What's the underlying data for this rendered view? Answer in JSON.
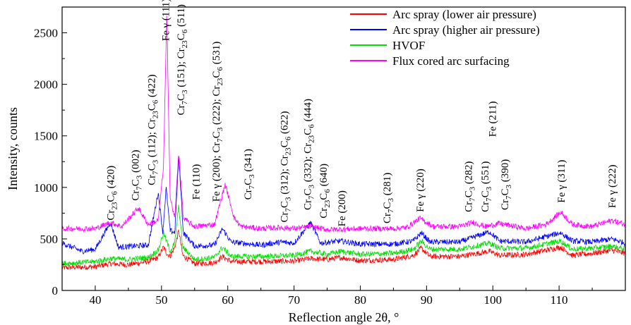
{
  "chart_data": {
    "type": "line",
    "xlabel": "Reflection angle 2θ, °",
    "ylabel": "Intensity, counts",
    "xlim": [
      35,
      120
    ],
    "ylim": [
      0,
      2750
    ],
    "xticks": [
      40,
      50,
      60,
      70,
      80,
      90,
      100,
      110
    ],
    "yticks": [
      0,
      500,
      1000,
      1500,
      2000,
      2500
    ],
    "grid": false,
    "legend_position": "top-right",
    "series": [
      {
        "name": "Arc spray (lower air pressure)",
        "color": "#ff0000",
        "x": [
          35,
          40,
          42.3,
          45,
          48,
          49.5,
          50.3,
          50.8,
          51.3,
          52,
          52.6,
          53.2,
          55,
          58,
          59.2,
          60.5,
          65,
          70,
          72.5,
          75,
          77,
          80,
          85,
          88,
          89.2,
          90.5,
          95,
          99.5,
          101,
          105,
          110.2,
          112,
          115,
          118,
          120
        ],
        "values": [
          220,
          230,
          260,
          250,
          280,
          320,
          420,
          360,
          330,
          420,
          580,
          340,
          260,
          270,
          330,
          280,
          280,
          285,
          310,
          300,
          320,
          290,
          300,
          340,
          410,
          330,
          330,
          380,
          340,
          350,
          420,
          340,
          360,
          390,
          360
        ]
      },
      {
        "name": "Arc spray (higher air pressure)",
        "color": "#0000ff",
        "x": [
          35,
          38,
          40,
          42.3,
          43.5,
          46,
          48,
          49.5,
          50.2,
          50.7,
          51.3,
          52,
          52.6,
          53.3,
          55,
          58,
          59.2,
          60.5,
          65,
          68,
          70,
          72.5,
          74,
          77,
          80,
          85,
          88,
          89.2,
          90.5,
          95,
          99.5,
          101,
          105,
          110.2,
          112,
          115,
          118,
          120
        ],
        "values": [
          460,
          380,
          400,
          660,
          420,
          430,
          440,
          950,
          560,
          1000,
          580,
          560,
          1300,
          560,
          430,
          440,
          600,
          470,
          440,
          470,
          460,
          660,
          460,
          480,
          450,
          450,
          480,
          560,
          470,
          470,
          570,
          480,
          470,
          560,
          480,
          470,
          500,
          460
        ]
      },
      {
        "name": "HVOF",
        "color": "#00dd00",
        "x": [
          35,
          40,
          42.3,
          45,
          48,
          49.5,
          50.3,
          50.8,
          51.3,
          52,
          52.6,
          53.2,
          55,
          58,
          59.2,
          60.5,
          65,
          70,
          72.5,
          75,
          77,
          80,
          85,
          88,
          89.2,
          90.5,
          95,
          99.5,
          101,
          105,
          110.2,
          112,
          115,
          118,
          120
        ],
        "values": [
          260,
          280,
          310,
          300,
          320,
          390,
          560,
          470,
          380,
          460,
          820,
          420,
          300,
          320,
          420,
          330,
          330,
          340,
          380,
          350,
          380,
          350,
          360,
          400,
          480,
          400,
          400,
          460,
          410,
          410,
          480,
          400,
          410,
          430,
          400
        ]
      },
      {
        "name": "Flux cored arc surfacing",
        "color": "#ff00ff",
        "x": [
          35,
          40,
          42.3,
          44,
          46.5,
          48,
          49.5,
          50.3,
          50.8,
          51.3,
          52,
          52.6,
          53.3,
          55,
          58,
          59.6,
          61,
          62,
          65,
          68,
          70,
          72.5,
          75,
          80,
          85,
          87,
          89,
          91,
          95,
          97,
          99,
          101,
          105,
          108,
          110.3,
          112,
          115,
          118,
          120
        ],
        "values": [
          600,
          600,
          660,
          620,
          800,
          640,
          680,
          1200,
          2700,
          900,
          700,
          1350,
          700,
          620,
          640,
          1030,
          700,
          620,
          600,
          610,
          600,
          620,
          590,
          600,
          600,
          610,
          700,
          620,
          620,
          660,
          620,
          650,
          600,
          640,
          760,
          640,
          620,
          680,
          640
        ]
      }
    ],
    "annotations": [
      {
        "x": 42.3,
        "y": 680,
        "text": "Cr23C6 (420)",
        "rich": [
          [
            "Cr"
          ],
          [
            "23",
            "sub"
          ],
          [
            "C"
          ],
          [
            "6",
            "sub"
          ],
          [
            " (420)"
          ]
        ]
      },
      {
        "x": 46.0,
        "y": 870,
        "text": "Cr7C3 (002)",
        "rich": [
          [
            "Cr"
          ],
          [
            "7",
            "sub"
          ],
          [
            "C"
          ],
          [
            "3",
            "sub"
          ],
          [
            " (002)"
          ]
        ]
      },
      {
        "x": 48.5,
        "y": 1020,
        "text": "Cr7C3 (112); Cr23C6 (422)",
        "rich": [
          [
            "Cr"
          ],
          [
            "7",
            "sub"
          ],
          [
            "C"
          ],
          [
            "3",
            "sub"
          ],
          [
            " (112); Cr"
          ],
          [
            "23",
            "sub"
          ],
          [
            "C"
          ],
          [
            "6",
            "sub"
          ],
          [
            " (422)"
          ]
        ]
      },
      {
        "x": 50.6,
        "y": 2420,
        "text": "Fe γ (111)",
        "rich": [
          [
            "Fe γ (111)"
          ]
        ]
      },
      {
        "x": 52.9,
        "y": 1700,
        "text": "Cr7C3 (151); Cr23C6 (511)",
        "rich": [
          [
            "Cr"
          ],
          [
            "7",
            "sub"
          ],
          [
            "C"
          ],
          [
            "3",
            "sub"
          ],
          [
            " (151); Cr"
          ],
          [
            "23",
            "sub"
          ],
          [
            "C"
          ],
          [
            "6",
            "sub"
          ],
          [
            " (511)"
          ]
        ]
      },
      {
        "x": 55.2,
        "y": 880,
        "text": "Fe (110)",
        "rich": [
          [
            "Fe (110)"
          ]
        ]
      },
      {
        "x": 58.2,
        "y": 860,
        "text": "Fe γ (200); Cr7C3 (222); Cr23C6 (531)",
        "rich": [
          [
            "Fe γ (200); Cr"
          ],
          [
            "7",
            "sub"
          ],
          [
            "C"
          ],
          [
            "3",
            "sub"
          ],
          [
            " (222); Cr"
          ],
          [
            "23",
            "sub"
          ],
          [
            "C"
          ],
          [
            "6",
            "sub"
          ],
          [
            " (531)"
          ]
        ]
      },
      {
        "x": 63.0,
        "y": 880,
        "text": "Cr7C3 (341)",
        "rich": [
          [
            "Cr"
          ],
          [
            "7",
            "sub"
          ],
          [
            "C"
          ],
          [
            "3",
            "sub"
          ],
          [
            " (341)"
          ]
        ]
      },
      {
        "x": 68.5,
        "y": 660,
        "text": "Cr7C3 (312); Cr23C6 (622)",
        "rich": [
          [
            "Cr"
          ],
          [
            "7",
            "sub"
          ],
          [
            "C"
          ],
          [
            "3",
            "sub"
          ],
          [
            " (312); Cr"
          ],
          [
            "23",
            "sub"
          ],
          [
            "C"
          ],
          [
            "6",
            "sub"
          ],
          [
            " (622)"
          ]
        ]
      },
      {
        "x": 72.0,
        "y": 780,
        "text": "Cr7C3 (332); Cr23C6 (444)",
        "rich": [
          [
            "Cr"
          ],
          [
            "7",
            "sub"
          ],
          [
            "C"
          ],
          [
            "3",
            "sub"
          ],
          [
            " (332); Cr"
          ],
          [
            "23",
            "sub"
          ],
          [
            "C"
          ],
          [
            "6",
            "sub"
          ],
          [
            " (444)"
          ]
        ]
      },
      {
        "x": 74.4,
        "y": 700,
        "text": "Cr23C6 (640)",
        "rich": [
          [
            "Cr"
          ],
          [
            "23",
            "sub"
          ],
          [
            "C"
          ],
          [
            "6",
            "sub"
          ],
          [
            " (640)"
          ]
        ]
      },
      {
        "x": 77.2,
        "y": 620,
        "text": "Fe (200)",
        "rich": [
          [
            "Fe (200)"
          ]
        ]
      },
      {
        "x": 84.0,
        "y": 650,
        "text": "Cr7C3 (281)",
        "rich": [
          [
            "Cr"
          ],
          [
            "7",
            "sub"
          ],
          [
            "C"
          ],
          [
            "3",
            "sub"
          ],
          [
            " (281)"
          ]
        ]
      },
      {
        "x": 89.0,
        "y": 760,
        "text": "Fe γ (220)",
        "rich": [
          [
            "Fe γ (220)"
          ]
        ]
      },
      {
        "x": 96.3,
        "y": 760,
        "text": "Cr7C3 (282)",
        "rich": [
          [
            "Cr"
          ],
          [
            "7",
            "sub"
          ],
          [
            "C"
          ],
          [
            "3",
            "sub"
          ],
          [
            " (282)"
          ]
        ]
      },
      {
        "x": 98.8,
        "y": 760,
        "text": "Cr7C3 (551)",
        "rich": [
          [
            "Cr"
          ],
          [
            "7",
            "sub"
          ],
          [
            "C"
          ],
          [
            "3",
            "sub"
          ],
          [
            " (551)"
          ]
        ]
      },
      {
        "x": 99.9,
        "y": 1490,
        "text": "Fe (211)",
        "rich": [
          [
            "Fe (211)"
          ]
        ]
      },
      {
        "x": 101.8,
        "y": 780,
        "text": "Cr7C3 (390)",
        "rich": [
          [
            "Cr"
          ],
          [
            "7",
            "sub"
          ],
          [
            "C"
          ],
          [
            "3",
            "sub"
          ],
          [
            " (390)"
          ]
        ]
      },
      {
        "x": 110.3,
        "y": 850,
        "text": "Fe γ (311)",
        "rich": [
          [
            "Fe γ (311)"
          ]
        ]
      },
      {
        "x": 118.0,
        "y": 800,
        "text": "Fe γ (222)",
        "rich": [
          [
            "Fe γ (222)"
          ]
        ]
      }
    ]
  }
}
